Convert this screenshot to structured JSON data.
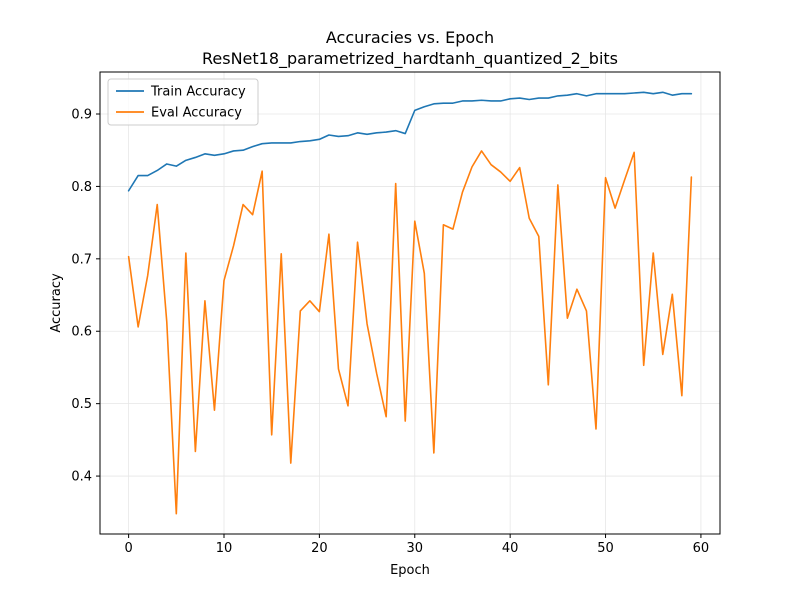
{
  "chart_data": {
    "type": "line",
    "title": "Accuracies vs. Epoch",
    "subtitle": "ResNet18_parametrized_hardtanh_quantized_2_bits",
    "xlabel": "Epoch",
    "ylabel": "Accuracy",
    "xlim": [
      -3,
      62
    ],
    "ylim": [
      0.32,
      0.958
    ],
    "xticks": [
      0,
      10,
      20,
      30,
      40,
      50,
      60
    ],
    "yticks": [
      0.4,
      0.5,
      0.6,
      0.7,
      0.8,
      0.9
    ],
    "grid": true,
    "legend_position": "top-left",
    "x": [
      0,
      1,
      2,
      3,
      4,
      5,
      6,
      7,
      8,
      9,
      10,
      11,
      12,
      13,
      14,
      15,
      16,
      17,
      18,
      19,
      20,
      21,
      22,
      23,
      24,
      25,
      26,
      27,
      28,
      29,
      30,
      31,
      32,
      33,
      34,
      35,
      36,
      37,
      38,
      39,
      40,
      41,
      42,
      43,
      44,
      45,
      46,
      47,
      48,
      49,
      50,
      51,
      52,
      53,
      54,
      55,
      56,
      57,
      58,
      59
    ],
    "series": [
      {
        "name": "Train Accuracy",
        "color": "#1f77b4",
        "values": [
          0.794,
          0.815,
          0.815,
          0.822,
          0.831,
          0.828,
          0.836,
          0.84,
          0.845,
          0.843,
          0.845,
          0.849,
          0.85,
          0.855,
          0.859,
          0.86,
          0.86,
          0.86,
          0.862,
          0.863,
          0.865,
          0.871,
          0.869,
          0.87,
          0.874,
          0.872,
          0.874,
          0.875,
          0.877,
          0.873,
          0.905,
          0.91,
          0.914,
          0.915,
          0.915,
          0.918,
          0.918,
          0.919,
          0.918,
          0.918,
          0.921,
          0.922,
          0.92,
          0.922,
          0.922,
          0.925,
          0.926,
          0.928,
          0.925,
          0.928,
          0.928,
          0.928,
          0.928,
          0.929,
          0.93,
          0.928,
          0.93,
          0.926,
          0.928,
          0.928
        ]
      },
      {
        "name": "Eval Accuracy",
        "color": "#ff7f0e",
        "values": [
          0.703,
          0.606,
          0.677,
          0.775,
          0.613,
          0.348,
          0.708,
          0.434,
          0.642,
          0.491,
          0.67,
          0.718,
          0.775,
          0.761,
          0.821,
          0.457,
          0.707,
          0.418,
          0.628,
          0.642,
          0.627,
          0.734,
          0.548,
          0.497,
          0.723,
          0.61,
          0.542,
          0.482,
          0.804,
          0.476,
          0.752,
          0.68,
          0.432,
          0.747,
          0.741,
          0.792,
          0.827,
          0.849,
          0.83,
          0.82,
          0.807,
          0.826,
          0.756,
          0.731,
          0.526,
          0.802,
          0.618,
          0.658,
          0.628,
          0.465,
          0.812,
          0.77,
          0.809,
          0.847,
          0.553,
          0.708,
          0.568,
          0.651,
          0.511,
          0.813
        ]
      }
    ]
  }
}
